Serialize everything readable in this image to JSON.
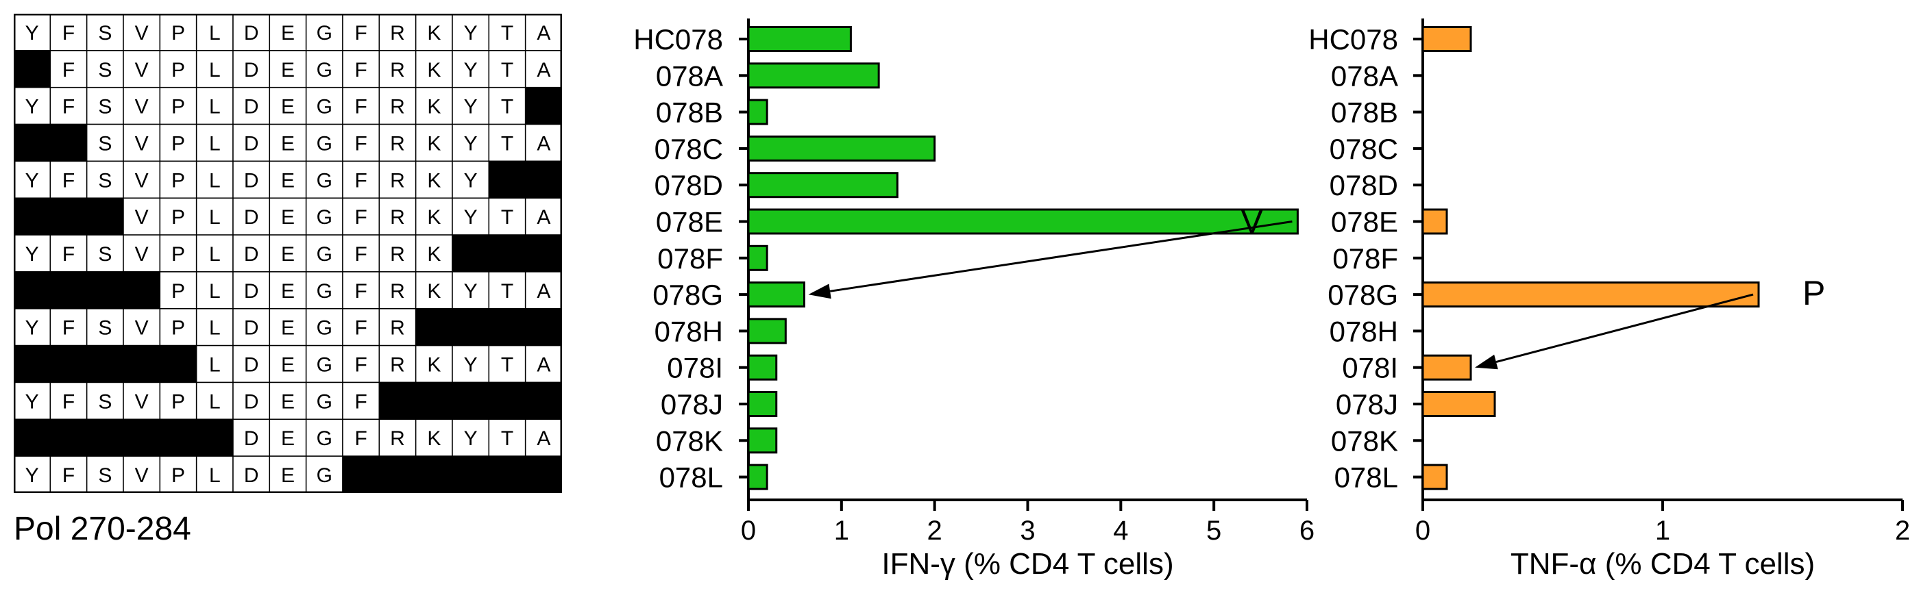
{
  "grid": {
    "peptide_label": "Pol 270-284",
    "residues": [
      "Y",
      "F",
      "S",
      "V",
      "P",
      "L",
      "D",
      "E",
      "G",
      "F",
      "R",
      "K",
      "Y",
      "T",
      "A"
    ],
    "rows": [
      {
        "start": 1,
        "end": 15
      },
      {
        "start": 2,
        "end": 15
      },
      {
        "start": 1,
        "end": 14
      },
      {
        "start": 3,
        "end": 15
      },
      {
        "start": 1,
        "end": 13
      },
      {
        "start": 4,
        "end": 15
      },
      {
        "start": 1,
        "end": 12
      },
      {
        "start": 5,
        "end": 15
      },
      {
        "start": 1,
        "end": 11
      },
      {
        "start": 6,
        "end": 15
      },
      {
        "start": 1,
        "end": 10
      },
      {
        "start": 7,
        "end": 15
      },
      {
        "start": 1,
        "end": 9
      }
    ],
    "colors": {
      "filled": "#000000",
      "cell": "#ffffff",
      "text": "#000000"
    }
  },
  "chart_data": [
    {
      "type": "bar",
      "orientation": "horizontal",
      "categories": [
        "HC078",
        "078A",
        "078B",
        "078C",
        "078D",
        "078E",
        "078F",
        "078G",
        "078H",
        "078I",
        "078J",
        "078K",
        "078L"
      ],
      "values": [
        1.1,
        1.4,
        0.2,
        2.0,
        1.6,
        5.9,
        0.2,
        0.6,
        0.4,
        0.3,
        0.3,
        0.3,
        0.2
      ],
      "xlabel": "IFN-γ (% CD4 T cells)",
      "xlim": [
        0,
        6
      ],
      "xticks": [
        0,
        1,
        2,
        3,
        4,
        5,
        6
      ],
      "color": "#19c319",
      "annotation": {
        "text": "V",
        "from": "078E",
        "to": "078G"
      }
    },
    {
      "type": "bar",
      "orientation": "horizontal",
      "categories": [
        "HC078",
        "078A",
        "078B",
        "078C",
        "078D",
        "078E",
        "078F",
        "078G",
        "078H",
        "078I",
        "078J",
        "078K",
        "078L"
      ],
      "values": [
        0.2,
        0,
        0,
        0,
        0,
        0.1,
        0,
        1.4,
        0,
        0.2,
        0.3,
        0,
        0.1
      ],
      "xlabel": "TNF-α (% CD4 T cells)",
      "xlim": [
        0,
        2
      ],
      "xticks": [
        0,
        1,
        2
      ],
      "color": "#ff9e2c",
      "annotation": {
        "text": "P",
        "from": "078G",
        "to": "078I"
      }
    }
  ]
}
